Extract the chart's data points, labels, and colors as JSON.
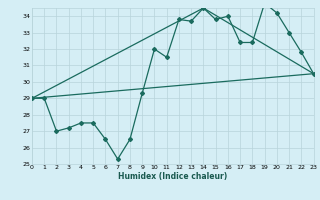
{
  "xlabel": "Humidex (Indice chaleur)",
  "bg_color": "#d5eef5",
  "grid_color": "#b8d4da",
  "line_color": "#1a6b5e",
  "xlim": [
    0,
    23
  ],
  "ylim": [
    25,
    34.5
  ],
  "xticks": [
    0,
    1,
    2,
    3,
    4,
    5,
    6,
    7,
    8,
    9,
    10,
    11,
    12,
    13,
    14,
    15,
    16,
    17,
    18,
    19,
    20,
    21,
    22,
    23
  ],
  "yticks": [
    25,
    26,
    27,
    28,
    29,
    30,
    31,
    32,
    33,
    34
  ],
  "series1_x": [
    0,
    1,
    2,
    3,
    4,
    5,
    6,
    7,
    8,
    9,
    10,
    11,
    12,
    13,
    14,
    15,
    16,
    17,
    18,
    19,
    20,
    21,
    22,
    23
  ],
  "series1_y": [
    29,
    29,
    27,
    27.2,
    27.5,
    27.5,
    26.5,
    25.3,
    26.5,
    29.3,
    32.0,
    31.5,
    33.8,
    33.7,
    34.5,
    33.8,
    34.0,
    32.4,
    32.4,
    34.8,
    34.2,
    33.0,
    31.8,
    30.5
  ],
  "series2_x": [
    0,
    23
  ],
  "series2_y": [
    29.0,
    30.5
  ],
  "series3_x": [
    0,
    14,
    23
  ],
  "series3_y": [
    29.0,
    34.5,
    30.5
  ],
  "marker_size": 2.0,
  "line_width": 0.9
}
